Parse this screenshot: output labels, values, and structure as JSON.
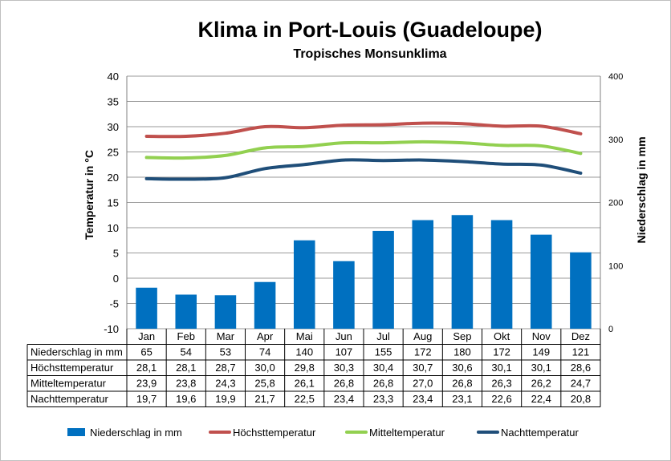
{
  "chart_data": {
    "type": "bar+line",
    "title": "Klima in Port-Louis (Guadeloupe)",
    "subtitle": "Tropisches Monsunklima",
    "ylabel_left": "Temperatur in °C",
    "ylabel_right": "Niederschlag in mm",
    "ylim_left": [
      -10,
      40
    ],
    "yticks_left": [
      -10,
      -5,
      0,
      5,
      10,
      15,
      20,
      25,
      30,
      35,
      40
    ],
    "ylim_right": [
      0,
      400
    ],
    "yticks_right": [
      0,
      100,
      200,
      300,
      400
    ],
    "grid": true,
    "legend_position": "bottom",
    "categories": [
      "Jan",
      "Feb",
      "Mar",
      "Apr",
      "Mai",
      "Jun",
      "Jul",
      "Aug",
      "Sep",
      "Okt",
      "Nov",
      "Dez"
    ],
    "series": [
      {
        "name": "Niederschlag in mm",
        "type": "bar",
        "axis": "right",
        "color": "#0070c0",
        "values": [
          65,
          54,
          53,
          74,
          140,
          107,
          155,
          172,
          180,
          172,
          149,
          121
        ],
        "labels": [
          "65",
          "54",
          "53",
          "74",
          "140",
          "107",
          "155",
          "172",
          "180",
          "172",
          "149",
          "121"
        ]
      },
      {
        "name": "Höchsttemperatur",
        "type": "line",
        "axis": "left",
        "color": "#c0504d",
        "values": [
          28.1,
          28.1,
          28.7,
          30.0,
          29.8,
          30.3,
          30.4,
          30.7,
          30.6,
          30.1,
          30.1,
          28.6
        ],
        "labels": [
          "28,1",
          "28,1",
          "28,7",
          "30,0",
          "29,8",
          "30,3",
          "30,4",
          "30,7",
          "30,6",
          "30,1",
          "30,1",
          "28,6"
        ]
      },
      {
        "name": "Mitteltemperatur",
        "type": "line",
        "axis": "left",
        "color": "#92d050",
        "values": [
          23.9,
          23.8,
          24.3,
          25.8,
          26.1,
          26.8,
          26.8,
          27.0,
          26.8,
          26.3,
          26.2,
          24.7
        ],
        "labels": [
          "23,9",
          "23,8",
          "24,3",
          "25,8",
          "26,1",
          "26,8",
          "26,8",
          "27,0",
          "26,8",
          "26,3",
          "26,2",
          "24,7"
        ]
      },
      {
        "name": "Nachttemperatur",
        "type": "line",
        "axis": "left",
        "color": "#1f4e79",
        "values": [
          19.7,
          19.6,
          19.9,
          21.7,
          22.5,
          23.4,
          23.3,
          23.4,
          23.1,
          22.6,
          22.4,
          20.8
        ],
        "labels": [
          "19,7",
          "19,6",
          "19,9",
          "21,7",
          "22,5",
          "23,4",
          "23,3",
          "23,4",
          "23,1",
          "22,6",
          "22,4",
          "20,8"
        ]
      }
    ]
  }
}
